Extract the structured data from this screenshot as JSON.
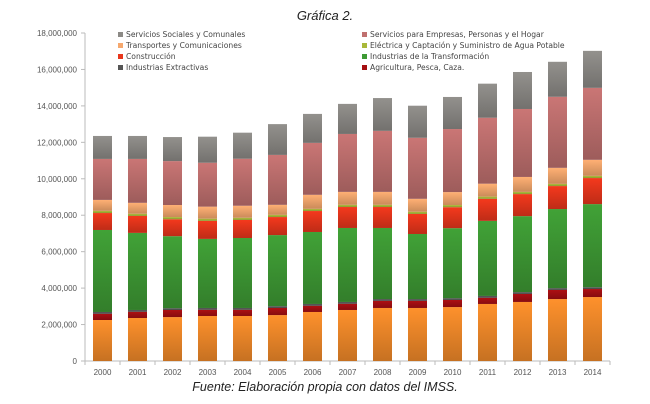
{
  "chart_data": {
    "type": "bar",
    "stacked": true,
    "title": "Gráfica 2.",
    "footer": "Fuente: Elaboración propia con datos del IMSS.",
    "xlabel": "",
    "ylabel": "",
    "ylim": [
      0,
      18000000
    ],
    "yticks": [
      0,
      2000000,
      4000000,
      6000000,
      8000000,
      10000000,
      12000000,
      14000000,
      16000000,
      18000000
    ],
    "ytick_labels": [
      "0",
      "2,000,000",
      "4,000,000",
      "6,000,000",
      "8,000,000",
      "10,000,000",
      "12,000,000",
      "14,000,000",
      "16,000,000",
      "18,000,000"
    ],
    "grid": false,
    "legend_position": "top-inside",
    "categories": [
      "2000",
      "2001",
      "2002",
      "2003",
      "2004",
      "2005",
      "2006",
      "2007",
      "2008",
      "2009",
      "2010",
      "2011",
      "2012",
      "2013",
      "2014"
    ],
    "legend": [
      {
        "name": "Servicios Sociales y Comunales",
        "color": "#8c8a86"
      },
      {
        "name": "Servicios para Empresas, Personas y el Hogar",
        "color": "#c0706f"
      },
      {
        "name": "Transportes y Comunicaciones",
        "color": "#f6a86e"
      },
      {
        "name": "Eléctrica y Captación y Suministro de Agua Potable",
        "color": "#a9b83a"
      },
      {
        "name": "Construcción",
        "color": "#e8361c"
      },
      {
        "name": "Industrias de la Transformación",
        "color": "#3e9a34"
      },
      {
        "name": "Industrias Extractivas",
        "color": "#555555"
      },
      {
        "name": "Agricultura, Pesca, Caza.",
        "color": "#a50f12"
      }
    ],
    "series": [
      {
        "name": "",
        "color": "#f28a2a",
        "values": [
          2250000,
          2360000,
          2410000,
          2470000,
          2470000,
          2520000,
          2690000,
          2800000,
          2910000,
          2910000,
          2960000,
          3130000,
          3240000,
          3400000,
          3510000
        ]
      },
      {
        "name": "Agricultura, Pesca, Caza.",
        "color": "#a50f12",
        "values": [
          340000,
          340000,
          390000,
          340000,
          340000,
          390000,
          340000,
          340000,
          390000,
          390000,
          390000,
          340000,
          440000,
          500000,
          440000
        ]
      },
      {
        "name": "Industrias Extractivas",
        "color": "#555555",
        "values": [
          100000,
          100000,
          100000,
          100000,
          100000,
          100000,
          100000,
          100000,
          100000,
          100000,
          100000,
          100000,
          100000,
          100000,
          100000
        ]
      },
      {
        "name": "Industrias de la Transformación",
        "color": "#3e9a34",
        "values": [
          4500000,
          4230000,
          3950000,
          3790000,
          3840000,
          3900000,
          3950000,
          4060000,
          3900000,
          3570000,
          3840000,
          4120000,
          4170000,
          4340000,
          4560000
        ]
      },
      {
        "name": "Construcción",
        "color": "#e8361c",
        "values": [
          930000,
          930000,
          930000,
          990000,
          990000,
          990000,
          1150000,
          1150000,
          1150000,
          1100000,
          1150000,
          1210000,
          1210000,
          1260000,
          1430000
        ]
      },
      {
        "name": "Eléctrica y Captación y Suministro de Agua Potable",
        "color": "#a9b83a",
        "values": [
          120000,
          120000,
          120000,
          120000,
          120000,
          120000,
          120000,
          120000,
          120000,
          120000,
          120000,
          120000,
          120000,
          120000,
          120000
        ]
      },
      {
        "name": "Transportes y Comunicaciones",
        "color": "#f6a86e",
        "values": [
          600000,
          600000,
          660000,
          660000,
          660000,
          550000,
          770000,
          710000,
          710000,
          710000,
          710000,
          710000,
          820000,
          880000,
          880000
        ]
      },
      {
        "name": "Servicios para Empresas, Personas y el Hogar",
        "color": "#c0706f",
        "values": [
          2250000,
          2410000,
          2410000,
          2410000,
          2580000,
          2740000,
          2850000,
          3180000,
          3350000,
          3350000,
          3460000,
          3620000,
          3730000,
          3900000,
          3950000
        ]
      },
      {
        "name": "Servicios Sociales y Comunales",
        "color": "#8c8a86",
        "values": [
          1260000,
          1260000,
          1320000,
          1430000,
          1430000,
          1690000,
          1590000,
          1650000,
          1800000,
          1760000,
          1760000,
          1870000,
          2030000,
          1920000,
          2030000
        ]
      }
    ]
  }
}
